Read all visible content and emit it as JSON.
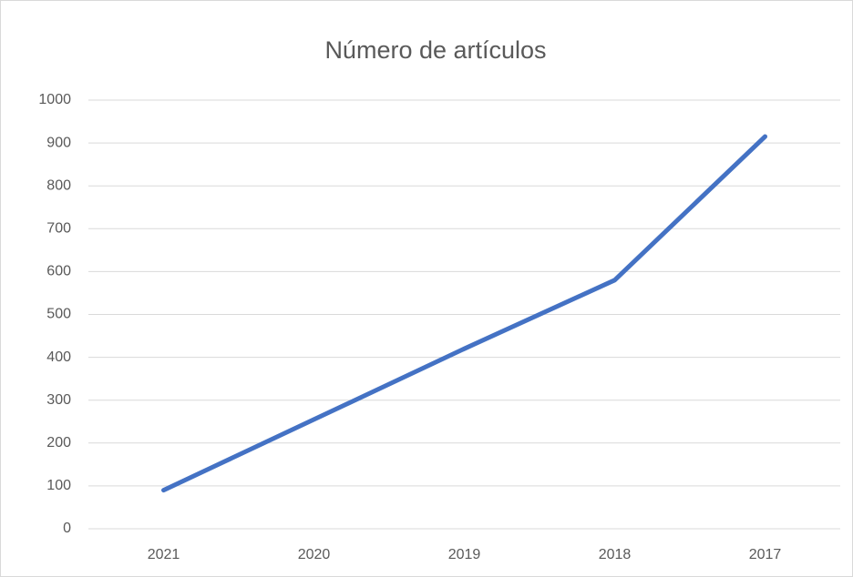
{
  "chart_data": {
    "type": "line",
    "title": "Número de artículos",
    "categories": [
      "2021",
      "2020",
      "2019",
      "2018",
      "2017"
    ],
    "series": [
      {
        "name": "Número de artículos",
        "color": "#4472c4",
        "values": [
          90,
          255,
          420,
          580,
          915
        ]
      }
    ],
    "ylim": [
      0,
      1000
    ],
    "yticks": [
      0,
      100,
      200,
      300,
      400,
      500,
      600,
      700,
      800,
      900,
      1000
    ],
    "grid": true
  }
}
